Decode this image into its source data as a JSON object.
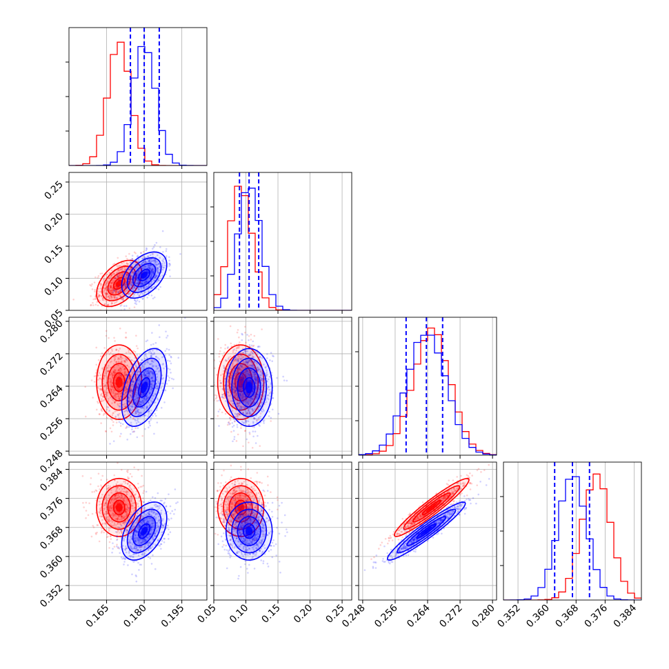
{
  "colors": {
    "series_a": "#ff0000",
    "series_b": "#0000ff",
    "quantile": "#0000ff",
    "grid": "#b0b0b0",
    "frame": "#000000"
  },
  "chart_data": {
    "type": "corner",
    "grid": true,
    "parameters": [
      {
        "ticks": [
          0.165,
          0.18,
          0.195
        ],
        "tick_labels": [
          "0.165",
          "0.180",
          "0.195"
        ],
        "range": [
          0.15,
          0.205
        ]
      },
      {
        "ticks": [
          0.05,
          0.1,
          0.15,
          0.2,
          0.25
        ],
        "tick_labels": [
          "0.05",
          "0.10",
          "0.15",
          "0.20",
          "0.25"
        ],
        "range": [
          0.05,
          0.265
        ]
      },
      {
        "ticks": [
          0.248,
          0.256,
          0.264,
          0.272,
          0.28
        ],
        "tick_labels": [
          "0.248",
          "0.256",
          "0.264",
          "0.272",
          "0.280"
        ],
        "range": [
          0.247,
          0.281
        ]
      },
      {
        "ticks": [
          0.352,
          0.36,
          0.368,
          0.376,
          0.384
        ],
        "tick_labels": [
          "0.352",
          "0.360",
          "0.368",
          "0.376",
          "0.384"
        ],
        "range": [
          0.348,
          0.386
        ]
      }
    ],
    "quantiles": [
      [
        0.1745,
        0.18,
        0.186
      ],
      [
        0.09,
        0.105,
        0.12
      ],
      [
        0.2587,
        0.2637,
        0.2677
      ],
      [
        0.3621,
        0.367,
        0.3717
      ]
    ],
    "series": [
      {
        "color": "red",
        "means": [
          0.17,
          0.092,
          0.265,
          0.3735
        ],
        "sds": [
          0.0045,
          0.018,
          0.0046,
          0.004
        ],
        "correlations": [
          {
            "i": 1,
            "j": 0,
            "r": 0.45
          },
          {
            "i": 2,
            "j": 0,
            "r": 0.0
          },
          {
            "i": 2,
            "j": 1,
            "r": 0.0
          },
          {
            "i": 3,
            "j": 0,
            "r": 0.0
          },
          {
            "i": 3,
            "j": 1,
            "r": 0.0
          },
          {
            "i": 3,
            "j": 2,
            "r": 0.95
          }
        ]
      },
      {
        "color": "blue",
        "means": [
          0.18,
          0.105,
          0.2637,
          0.367
        ],
        "sds": [
          0.0045,
          0.018,
          0.0048,
          0.004
        ],
        "correlations": [
          {
            "i": 1,
            "j": 0,
            "r": 0.45
          },
          {
            "i": 2,
            "j": 0,
            "r": 0.45
          },
          {
            "i": 2,
            "j": 1,
            "r": 0.0
          },
          {
            "i": 3,
            "j": 0,
            "r": 0.45
          },
          {
            "i": 3,
            "j": 1,
            "r": 0.0
          },
          {
            "i": 3,
            "j": 2,
            "r": 0.95
          }
        ]
      }
    ],
    "contour_levels_sigma": [
      0.5,
      1.0,
      1.5,
      2.0
    ]
  }
}
